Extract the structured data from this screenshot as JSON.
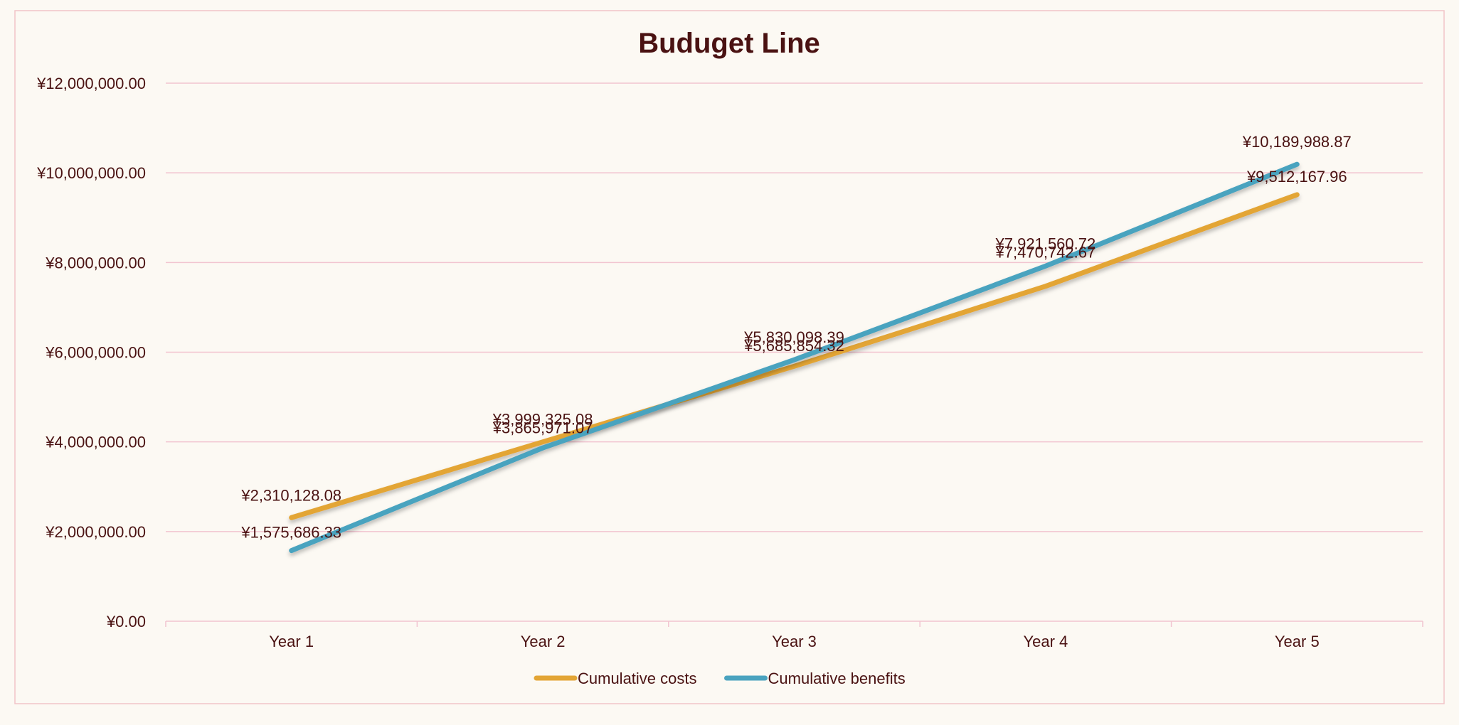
{
  "chart_data": {
    "type": "line",
    "title": "Buduget Line",
    "xlabel": "",
    "ylabel": "",
    "categories": [
      "Year 1",
      "Year 2",
      "Year 3",
      "Year 4",
      "Year 5"
    ],
    "ylim": [
      0,
      12000000
    ],
    "yticks": [
      0,
      2000000,
      4000000,
      6000000,
      8000000,
      10000000,
      12000000
    ],
    "ytick_labels": [
      "¥0.00",
      "¥2,000,000.00",
      "¥4,000,000.00",
      "¥6,000,000.00",
      "¥8,000,000.00",
      "¥10,000,000.00",
      "¥12,000,000.00"
    ],
    "grid": true,
    "legend_position": "bottom",
    "series": [
      {
        "name": "Cumulative costs",
        "color": "#e3a535",
        "values": [
          2310128.08,
          3999325.08,
          5685854.32,
          7470742.67,
          9512167.96
        ],
        "labels": [
          "¥2,310,128.08",
          "¥3,999,325.08",
          "¥5,685,854.32",
          "¥7,470,742.67",
          "¥9,512,167.96"
        ]
      },
      {
        "name": "Cumulative benefits",
        "color": "#4aa3bf",
        "values": [
          1575686.33,
          3865971.07,
          5830098.39,
          7921560.72,
          10189988.87
        ],
        "labels": [
          "¥1,575,686.33",
          "¥3,865,971.07",
          "¥5,830,098.39",
          "¥7,921,560.72",
          "¥10,189,988.87"
        ]
      }
    ],
    "colors": {
      "background": "#fcf9f3",
      "border": "#f2c4c8",
      "gridline": "#f2c4d0",
      "text": "#4a1212"
    }
  }
}
